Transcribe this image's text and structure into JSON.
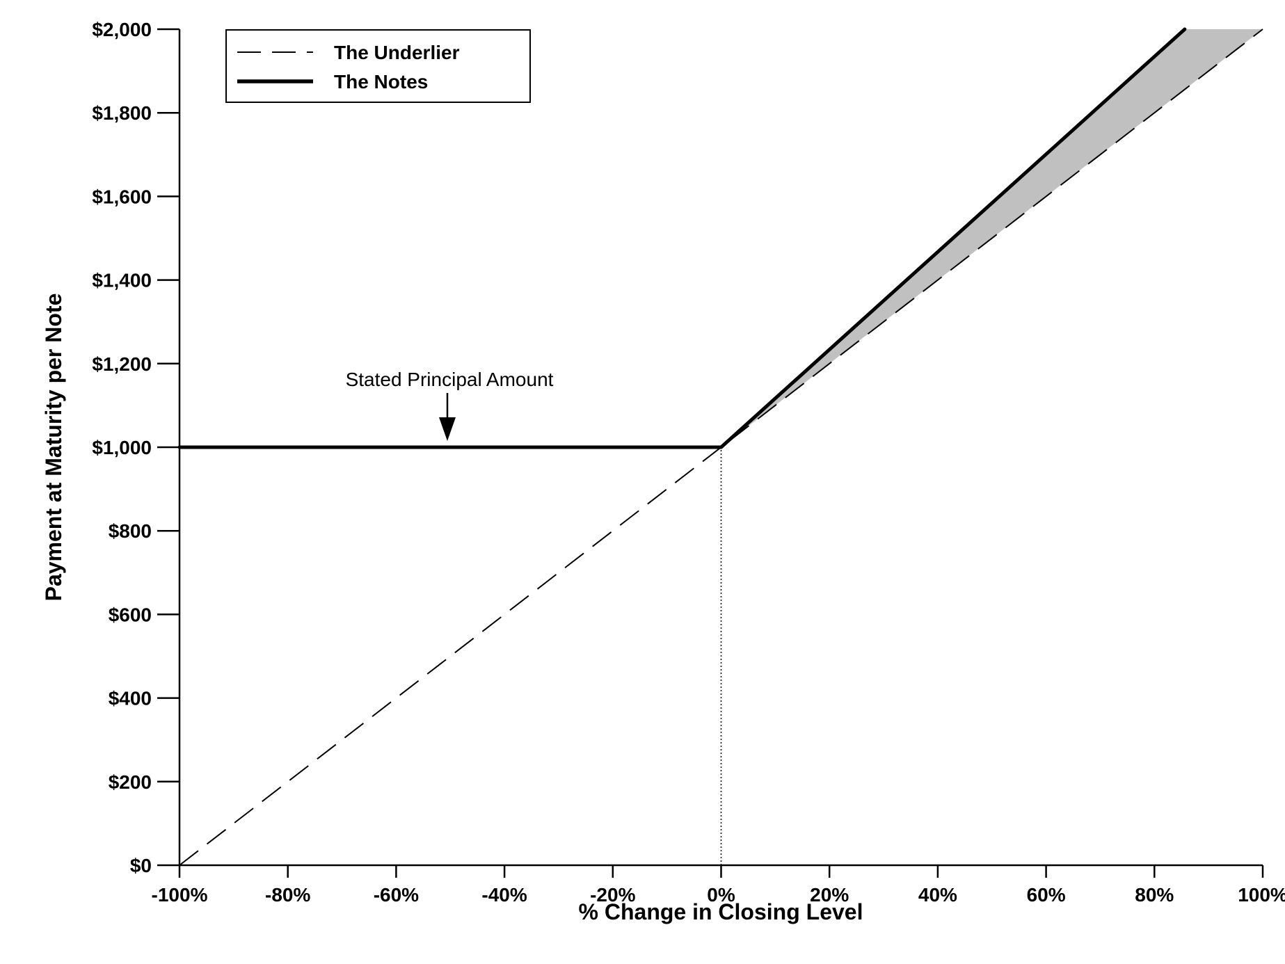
{
  "chart_data": {
    "type": "line",
    "xlabel": "% Change in Closing Level",
    "ylabel": "Payment at Maturity per Note",
    "xlim": [
      -100,
      100
    ],
    "ylim": [
      0,
      2000
    ],
    "x_ticks": [
      -100,
      -80,
      -60,
      -40,
      -20,
      0,
      20,
      40,
      60,
      80,
      100
    ],
    "x_tick_labels": [
      "-100%",
      "-80%",
      "-60%",
      "-40%",
      "-20%",
      "0%",
      "20%",
      "40%",
      "60%",
      "80%",
      "100%"
    ],
    "y_ticks": [
      0,
      200,
      400,
      600,
      800,
      1000,
      1200,
      1400,
      1600,
      1800,
      2000
    ],
    "y_tick_labels": [
      "$0",
      "$200",
      "$400",
      "$600",
      "$800",
      "$1,000",
      "$1,200",
      "$1,400",
      "$1,600",
      "$1,800",
      "$2,000"
    ],
    "grid": false,
    "legend_position": "top-left",
    "series": [
      {
        "name": "The Underlier",
        "style": "dashed",
        "color": "#000000",
        "x": [
          -100,
          100
        ],
        "y": [
          0,
          2000
        ]
      },
      {
        "name": "The Notes",
        "style": "solid-thick",
        "color": "#000000",
        "x": [
          -100,
          0,
          85.6
        ],
        "y": [
          1000,
          1000,
          2000
        ]
      }
    ],
    "shaded_region": {
      "color": "#c0c0c0",
      "between": [
        "The Notes",
        "The Underlier"
      ],
      "x_range": [
        0,
        100
      ]
    },
    "reference_line": {
      "style": "dotted",
      "x": 0,
      "y_range": [
        0,
        1000
      ]
    },
    "annotations": [
      {
        "text": "Stated Principal Amount",
        "x": -50,
        "y": 1000,
        "arrow": "down"
      }
    ]
  }
}
